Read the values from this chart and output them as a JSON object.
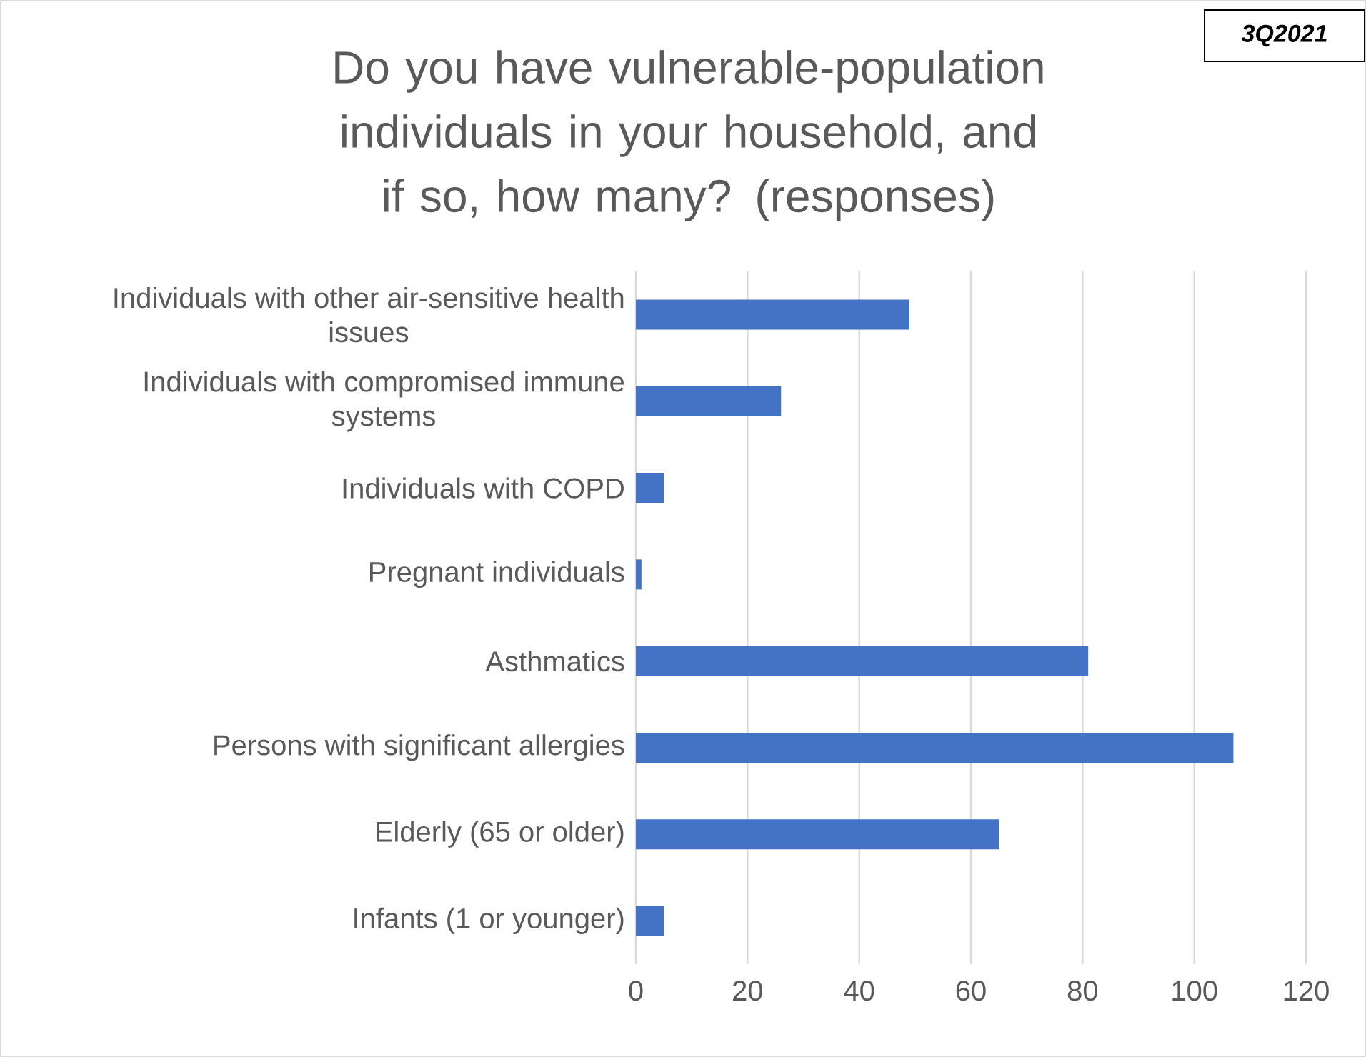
{
  "chart_data": {
    "type": "bar",
    "orientation": "horizontal",
    "title": "Do you have vulnerable-population individuals in your household, and if so, how many? (responses)",
    "annotations": [
      "3Q2021"
    ],
    "categories": [
      "Individuals with other air-sensitive health issues",
      "Individuals with compromised immune systems",
      "Individuals with COPD",
      "Pregnant individuals",
      "Asthmatics",
      "Persons with significant allergies",
      "Elderly (65 or older)",
      "Infants (1 or younger)"
    ],
    "values": [
      49,
      26,
      5,
      1,
      81,
      107,
      65,
      5
    ],
    "color": "#4472c4",
    "xlim": [
      0,
      120
    ],
    "xticks": [
      0,
      20,
      40,
      60,
      80,
      100,
      120
    ],
    "grid": "x"
  }
}
